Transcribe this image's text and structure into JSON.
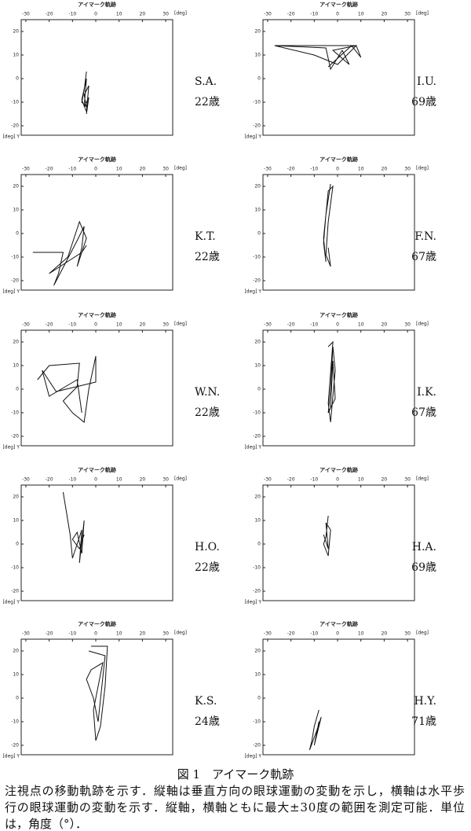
{
  "figure": {
    "plot_title": "アイマーク軌跡",
    "axes": {
      "xlim": [
        -32,
        33
      ],
      "ylim": [
        -24,
        25
      ],
      "xticks": [
        -30,
        -20,
        -10,
        0,
        10,
        20,
        30
      ],
      "yticks": [
        20,
        10,
        0,
        -10,
        -20
      ],
      "x_unit": "[deg]",
      "y_unit": "[deg] Y"
    },
    "panels": [
      {
        "subject": "S.A.",
        "age": "22歳",
        "trace_x": [
          -4,
          -5,
          -6,
          -4,
          -5,
          -3,
          -4,
          -6,
          -4,
          -5,
          -3,
          -4
        ],
        "trace_y": [
          3,
          -5,
          -10,
          -12,
          -7,
          -3,
          -14,
          -9,
          0,
          -12,
          -8,
          -15
        ]
      },
      {
        "subject": "I.U.",
        "age": "69歳",
        "trace_x": [
          -27,
          8,
          0,
          -10,
          -27,
          -5,
          -3,
          2,
          5,
          -2,
          8,
          10,
          6,
          -4
        ],
        "trace_y": [
          14,
          14,
          6,
          10,
          14,
          13,
          4,
          12,
          6,
          12,
          14,
          9,
          14,
          5
        ]
      },
      {
        "subject": "K.T.",
        "age": "22歳",
        "trace_x": [
          -27,
          -14,
          -16,
          -18,
          -8,
          -5,
          -6,
          -8,
          -4,
          -7,
          -12,
          -20,
          -6,
          -4
        ],
        "trace_y": [
          -8,
          -8,
          -17,
          -22,
          -3,
          3,
          -6,
          -14,
          -2,
          5,
          -10,
          -17,
          -8,
          -5
        ]
      },
      {
        "subject": "F.N.",
        "age": "67歳",
        "trace_x": [
          -3,
          -5,
          -6,
          -5,
          -6,
          -4,
          -2,
          -4,
          -5,
          -3,
          -4
        ],
        "trace_y": [
          21,
          8,
          -4,
          -12,
          -2,
          18,
          20,
          5,
          -9,
          -14,
          -6
        ]
      },
      {
        "subject": "W.N.",
        "age": "22歳",
        "trace_x": [
          -25,
          -20,
          -7,
          -8,
          -14,
          -10,
          -5,
          -3,
          0,
          0,
          -17,
          -23,
          -20,
          -8,
          -6
        ],
        "trace_y": [
          4,
          10,
          11,
          1,
          -5,
          -10,
          -14,
          0,
          14,
          3,
          -1,
          8,
          -3,
          4,
          -10
        ]
      },
      {
        "subject": "I.K.",
        "age": "67歳",
        "trace_x": [
          -4,
          -2,
          -4,
          -3,
          -1,
          -2,
          -3,
          -4,
          -1,
          -2,
          -3
        ],
        "trace_y": [
          18,
          20,
          -6,
          -14,
          8,
          18,
          0,
          -10,
          -4,
          12,
          -8
        ]
      },
      {
        "subject": "H.O.",
        "age": "22歳",
        "trace_x": [
          -14,
          -11,
          -10,
          -8,
          -6,
          -7,
          -5,
          -6,
          -8,
          -10,
          -7,
          -5
        ],
        "trace_y": [
          22,
          4,
          -6,
          0,
          6,
          -8,
          10,
          -4,
          5,
          2,
          -2,
          4
        ]
      },
      {
        "subject": "H.A.",
        "age": "69歳",
        "trace_x": [
          -4,
          -5,
          -6,
          -4,
          -3,
          -5,
          -4,
          -6
        ],
        "trace_y": [
          12,
          3,
          0,
          -5,
          6,
          9,
          -2,
          4
        ]
      },
      {
        "subject": "K.S.",
        "age": "24歳",
        "trace_x": [
          -2,
          5,
          4,
          2,
          0,
          -1,
          3,
          -2,
          -4,
          -1,
          1,
          4,
          -3
        ],
        "trace_y": [
          22,
          22,
          5,
          -12,
          -18,
          -5,
          15,
          12,
          8,
          0,
          -10,
          18,
          20
        ]
      },
      {
        "subject": "H.Y.",
        "age": "71歳",
        "trace_x": [
          -8,
          -10,
          -11,
          -12,
          -9,
          -7,
          -10,
          -8
        ],
        "trace_y": [
          -5,
          -12,
          -18,
          -22,
          -14,
          -8,
          -20,
          -10
        ]
      }
    ],
    "caption": {
      "title": "図 1　アイマーク軌跡",
      "lines": [
        "注視点の移動軌跡を示す．縦軸は垂直方向の眼球運動の変動を示し，横軸は水平歩",
        "行の眼球運動の変動を示す．縦軸，横軸ともに最大±30度の範囲を測定可能．単位",
        "は，角度（°）．"
      ]
    }
  }
}
